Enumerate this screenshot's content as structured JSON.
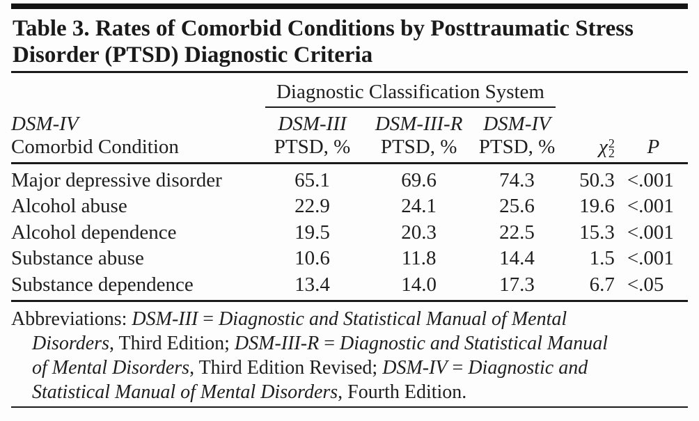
{
  "colors": {
    "text": "#1e1e1e",
    "rule": "#1a1a1a",
    "background": "#fdfdfd",
    "top_bar": "#141414"
  },
  "title_lines": [
    "Table 3. Rates of Comorbid Conditions by Posttraumatic Stress",
    "Disorder (PTSD) Diagnostic Criteria"
  ],
  "table": {
    "spanner": "Diagnostic Classification System",
    "stub_header": {
      "line1": "DSM-IV",
      "line2": "Comorbid Condition"
    },
    "columns": [
      {
        "line1": "DSM-III",
        "line2": "PTSD, %"
      },
      {
        "line1": "DSM-III-R",
        "line2": "PTSD, %"
      },
      {
        "line1": "DSM-IV",
        "line2": "PTSD, %"
      }
    ],
    "chi_header": {
      "base": "χ",
      "sup": "2",
      "sub": "2"
    },
    "p_header": "P",
    "rows": [
      {
        "condition": "Major depressive disorder",
        "dsm3": "65.1",
        "dsm3r": "69.6",
        "dsm4": "74.3",
        "chi": "50.3",
        "p": "<.001"
      },
      {
        "condition": "Alcohol abuse",
        "dsm3": "22.9",
        "dsm3r": "24.1",
        "dsm4": "25.6",
        "chi": "19.6",
        "p": "<.001"
      },
      {
        "condition": "Alcohol dependence",
        "dsm3": "19.5",
        "dsm3r": "20.3",
        "dsm4": "22.5",
        "chi": "15.3",
        "p": "<.001"
      },
      {
        "condition": "Substance abuse",
        "dsm3": "10.6",
        "dsm3r": "11.8",
        "dsm4": "14.4",
        "chi": "1.5",
        "p": "<.001"
      },
      {
        "condition": "Substance dependence",
        "dsm3": "13.4",
        "dsm3r": "14.0",
        "dsm4": "17.3",
        "chi": "6.7",
        "p": "<.05"
      }
    ]
  },
  "chart_data": {
    "type": "table",
    "title": "Table 3. Rates of Comorbid Conditions by Posttraumatic Stress Disorder (PTSD) Diagnostic Criteria",
    "columns": [
      "DSM-IV Comorbid Condition",
      "DSM-III PTSD, %",
      "DSM-III-R PTSD, %",
      "DSM-IV PTSD, %",
      "χ²₂",
      "P"
    ],
    "rows": [
      [
        "Major depressive disorder",
        65.1,
        69.6,
        74.3,
        50.3,
        "<.001"
      ],
      [
        "Alcohol abuse",
        22.9,
        24.1,
        25.6,
        19.6,
        "<.001"
      ],
      [
        "Alcohol dependence",
        19.5,
        20.3,
        22.5,
        15.3,
        "<.001"
      ],
      [
        "Substance abuse",
        10.6,
        11.8,
        14.4,
        1.5,
        "<.001"
      ],
      [
        "Substance dependence",
        13.4,
        14.0,
        17.3,
        6.7,
        "<.05"
      ]
    ]
  },
  "footnote": {
    "lines": [
      [
        {
          "t": "Abbreviations: ",
          "i": false
        },
        {
          "t": "DSM-III",
          "i": true
        },
        {
          "t": " = ",
          "i": false
        },
        {
          "t": "Diagnostic and Statistical Manual of Mental",
          "i": true
        }
      ],
      [
        {
          "t": "Disorders",
          "i": true
        },
        {
          "t": ", Third Edition; ",
          "i": false
        },
        {
          "t": "DSM-III-R",
          "i": true
        },
        {
          "t": " = ",
          "i": false
        },
        {
          "t": "Diagnostic and Statistical Manual",
          "i": true
        }
      ],
      [
        {
          "t": "of Mental Disorders",
          "i": true
        },
        {
          "t": ", Third Edition Revised; ",
          "i": false
        },
        {
          "t": "DSM-IV",
          "i": true
        },
        {
          "t": " = ",
          "i": false
        },
        {
          "t": "Diagnostic and",
          "i": true
        }
      ],
      [
        {
          "t": "Statistical Manual of Mental Disorders",
          "i": true
        },
        {
          "t": ", Fourth Edition.",
          "i": false
        }
      ]
    ]
  }
}
